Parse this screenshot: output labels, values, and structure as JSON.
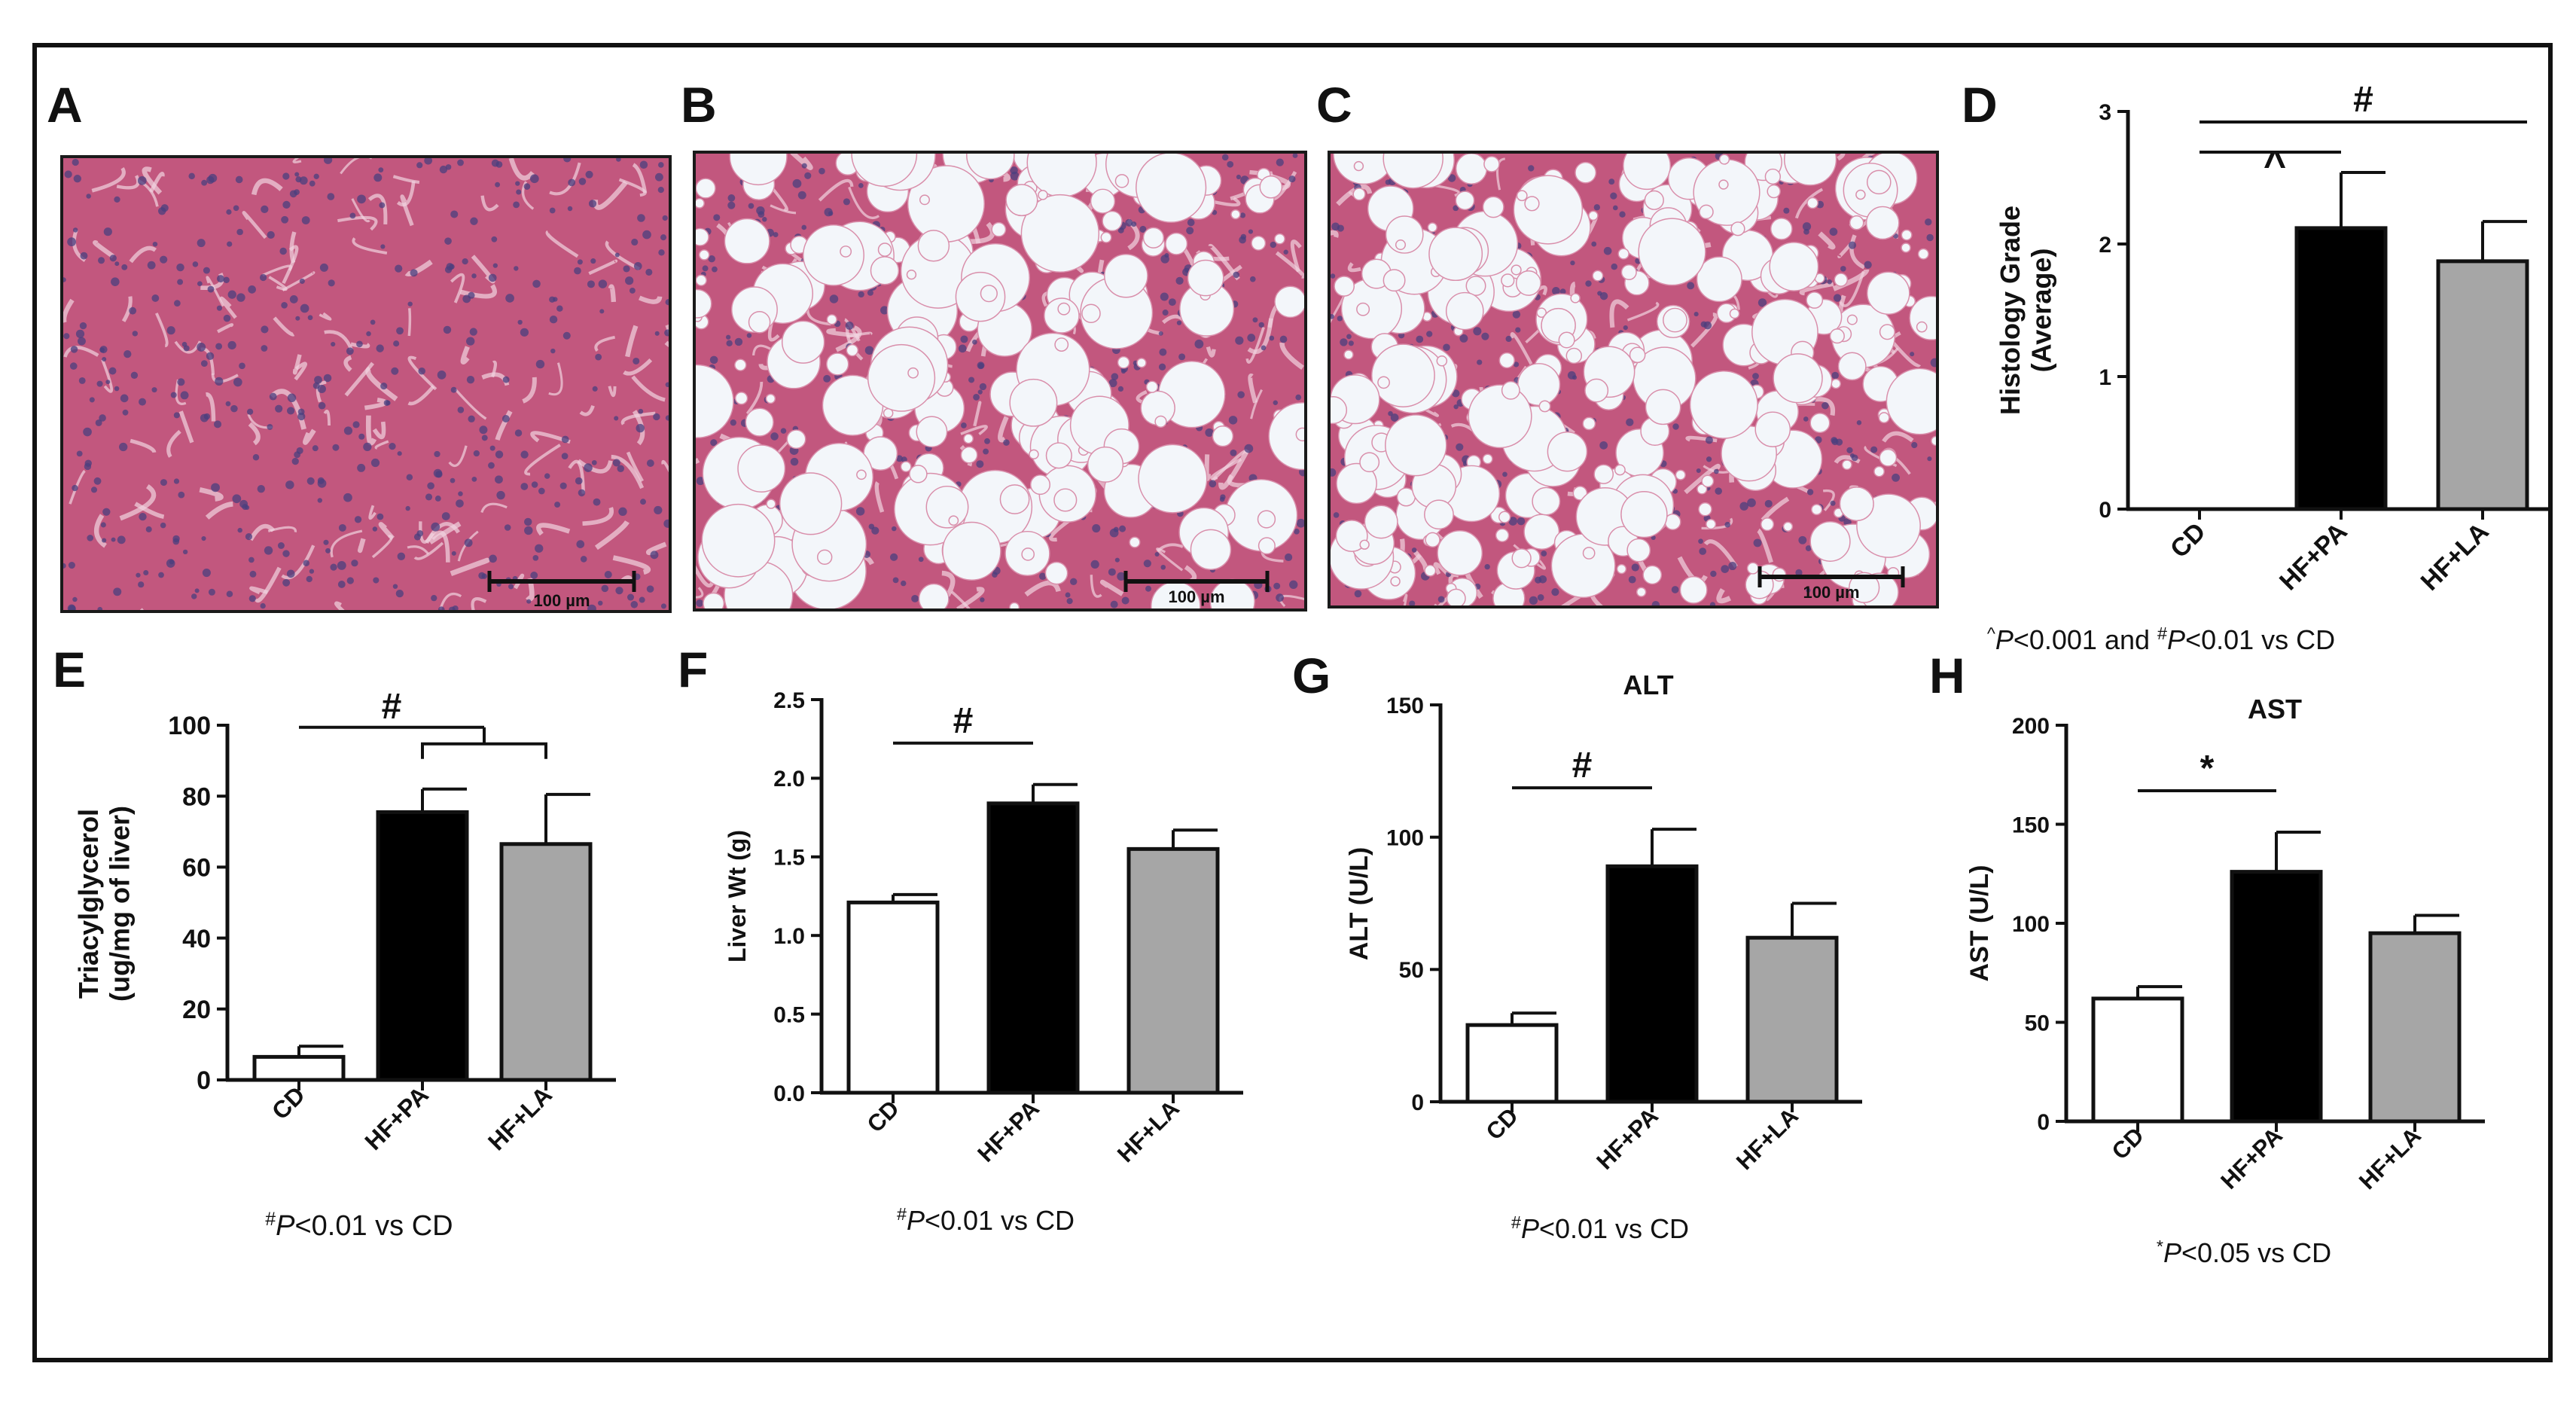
{
  "panels": {
    "A": {
      "letter": "A",
      "scale_label": "100 µm"
    },
    "B": {
      "letter": "B",
      "scale_label": "100 µm"
    },
    "C": {
      "letter": "C",
      "scale_label": "100 µm"
    }
  },
  "colors": {
    "CD": "#ffffff",
    "HF+PA": "#000000",
    "HF+LA": "#a6a6a6",
    "tissue": "#c2577e",
    "nucleus": "#4a3f7f",
    "vacuole": "#f3f6fa"
  },
  "chart_data": [
    {
      "panel": "D",
      "type": "bar",
      "title": "",
      "ylabel": [
        "Histology Grade",
        "(Average)"
      ],
      "categories": [
        "CD",
        "HF+PA",
        "HF+LA"
      ],
      "values": [
        0,
        2.12,
        1.87
      ],
      "errors": [
        0,
        0.42,
        0.3
      ],
      "ylim": [
        0,
        3
      ],
      "yticks": [
        "0",
        "1",
        "2",
        "3"
      ],
      "significance": [
        {
          "from": 0,
          "to": 1,
          "symbol": "^"
        },
        {
          "from": 0,
          "to": 2,
          "symbol": "#"
        }
      ],
      "footnote": "^P<0.001 and #P<0.01 vs CD"
    },
    {
      "panel": "E",
      "type": "bar",
      "title": "",
      "ylabel": [
        "Triacylglycerol",
        "(ug/mg of liver)"
      ],
      "categories": [
        "CD",
        "HF+PA",
        "HF+LA"
      ],
      "values": [
        6.5,
        75.5,
        66.5
      ],
      "errors": [
        3,
        6.5,
        14
      ],
      "ylim": [
        0,
        100
      ],
      "yticks": [
        "0",
        "20",
        "40",
        "60",
        "80",
        "100"
      ],
      "significance": [
        {
          "from": 0,
          "to": [
            1,
            2
          ],
          "symbol": "#"
        }
      ],
      "footnote": "#P<0.01 vs CD"
    },
    {
      "panel": "F",
      "type": "bar",
      "title": "",
      "ylabel": [
        "Liver Wt (g)"
      ],
      "categories": [
        "CD",
        "HF+PA",
        "HF+LA"
      ],
      "values": [
        1.21,
        1.84,
        1.55
      ],
      "errors": [
        0.05,
        0.12,
        0.12
      ],
      "ylim": [
        0,
        2.5
      ],
      "yticks": [
        "0.0",
        "0.5",
        "1.0",
        "1.5",
        "2.0",
        "2.5"
      ],
      "significance": [
        {
          "from": 0,
          "to": 1,
          "symbol": "#"
        }
      ],
      "footnote": "#P<0.01 vs CD"
    },
    {
      "panel": "G",
      "type": "bar",
      "title": "ALT",
      "ylabel": [
        "ALT (U/L)"
      ],
      "categories": [
        "CD",
        "HF+PA",
        "HF+LA"
      ],
      "values": [
        29,
        89,
        62
      ],
      "errors": [
        4.5,
        14,
        13
      ],
      "ylim": [
        0,
        150
      ],
      "yticks": [
        "0",
        "50",
        "100",
        "150"
      ],
      "significance": [
        {
          "from": 0,
          "to": 1,
          "symbol": "#"
        }
      ],
      "footnote": "#P<0.01 vs CD"
    },
    {
      "panel": "H",
      "type": "bar",
      "title": "AST",
      "ylabel": [
        "AST (U/L)"
      ],
      "categories": [
        "CD",
        "HF+PA",
        "HF+LA"
      ],
      "values": [
        62,
        126,
        95
      ],
      "errors": [
        6,
        20,
        9
      ],
      "ylim": [
        0,
        200
      ],
      "yticks": [
        "0",
        "50",
        "100",
        "150",
        "200"
      ],
      "significance": [
        {
          "from": 0,
          "to": 1,
          "symbol": "*"
        }
      ],
      "footnote": "*P<0.05 vs CD"
    }
  ]
}
